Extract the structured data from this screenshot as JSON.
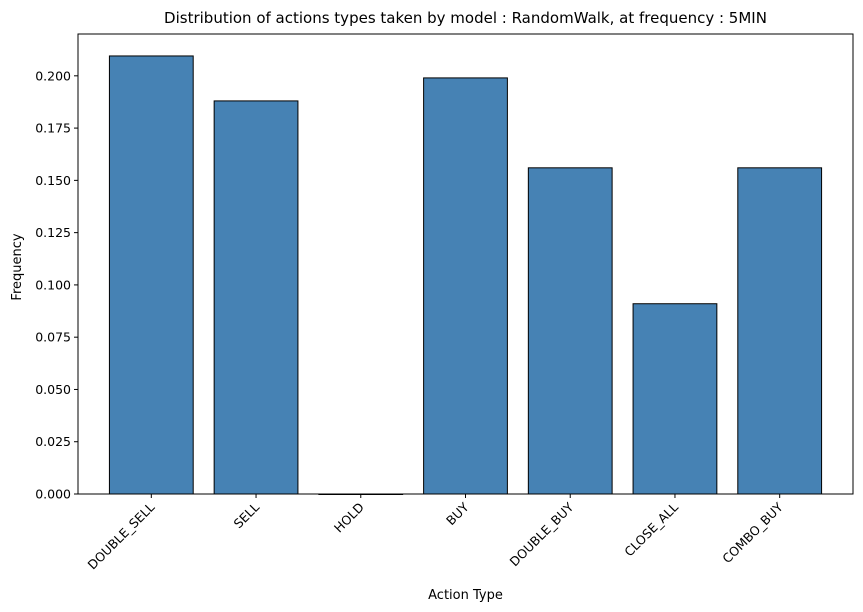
{
  "chart_data": {
    "type": "bar",
    "title": "Distribution of actions types taken by model : RandomWalk, at frequency : 5MIN",
    "xlabel": "Action Type",
    "ylabel": "Frequency",
    "categories": [
      "DOUBLE_SELL",
      "SELL",
      "HOLD",
      "BUY",
      "DOUBLE_BUY",
      "CLOSE_ALL",
      "COMBO_BUY"
    ],
    "values": [
      0.2095,
      0.188,
      0.0,
      0.199,
      0.156,
      0.091,
      0.156
    ],
    "ylim": [
      0,
      0.22
    ],
    "yticks": [
      "0.000",
      "0.025",
      "0.050",
      "0.075",
      "0.100",
      "0.125",
      "0.150",
      "0.175",
      "0.200"
    ],
    "bar_color": "#4682b4",
    "edge_color": "#000000",
    "grid": false,
    "legend": false
  }
}
